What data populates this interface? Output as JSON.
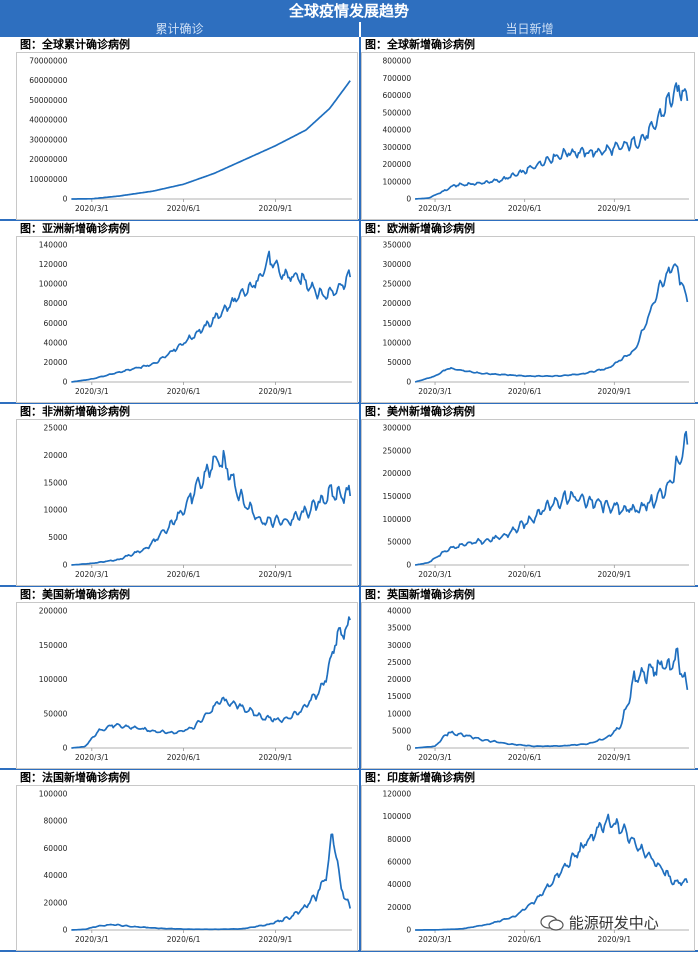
{
  "header": {
    "title": "全球疫情发展趋势",
    "left_column": "累计确诊",
    "right_column": "当日新增"
  },
  "watermark": "能源研发中心",
  "chart_data": [
    {
      "id": "global_cum",
      "type": "line",
      "title": "图：全球累计确诊病例",
      "ylim": [
        0,
        70000000
      ],
      "yticks": [
        0,
        10000000,
        20000000,
        30000000,
        40000000,
        50000000,
        60000000,
        70000000
      ],
      "xticks": [
        "2020/3/1",
        "2020/6/1",
        "2020/9/1"
      ],
      "xtick_pos": [
        0.22,
        0.49,
        0.76
      ],
      "x_range": [
        0.16,
        0.98
      ],
      "series": [
        {
          "name": "累计确诊",
          "x": [
            0.16,
            0.22,
            0.3,
            0.4,
            0.49,
            0.58,
            0.67,
            0.76,
            0.85,
            0.92,
            0.98
          ],
          "values": [
            0,
            100000,
            1500000,
            4000000,
            7500000,
            13000000,
            20000000,
            27000000,
            35000000,
            46000000,
            60000000
          ]
        }
      ],
      "noise": 0
    },
    {
      "id": "global_new",
      "type": "line",
      "title": "图：全球新增确诊病例",
      "ylim": [
        0,
        800000
      ],
      "yticks": [
        0,
        100000,
        200000,
        300000,
        400000,
        500000,
        600000,
        700000,
        800000
      ],
      "xticks": [
        "2020/3/1",
        "2020/6/1",
        "2020/9/1"
      ],
      "xtick_pos": [
        0.22,
        0.49,
        0.76
      ],
      "x_range": [
        0.16,
        0.98
      ],
      "series": [
        {
          "name": "新增",
          "x": [
            0.16,
            0.2,
            0.24,
            0.28,
            0.35,
            0.42,
            0.49,
            0.56,
            0.62,
            0.7,
            0.78,
            0.84,
            0.88,
            0.92,
            0.96,
            0.98
          ],
          "values": [
            0,
            5000,
            40000,
            80000,
            90000,
            110000,
            160000,
            230000,
            270000,
            270000,
            300000,
            340000,
            420000,
            560000,
            640000,
            600000
          ]
        }
      ],
      "noise": 0.12
    },
    {
      "id": "asia_new",
      "type": "line",
      "title": "图：亚洲新增确诊病例",
      "ylim": [
        0,
        140000
      ],
      "yticks": [
        0,
        20000,
        40000,
        60000,
        80000,
        100000,
        120000,
        140000
      ],
      "xticks": [
        "2020/3/1",
        "2020/6/1",
        "2020/9/1"
      ],
      "xtick_pos": [
        0.22,
        0.49,
        0.76
      ],
      "x_range": [
        0.16,
        0.98
      ],
      "series": [
        {
          "name": "新增",
          "x": [
            0.16,
            0.22,
            0.3,
            0.4,
            0.49,
            0.56,
            0.63,
            0.7,
            0.74,
            0.78,
            0.84,
            0.9,
            0.94,
            0.98
          ],
          "values": [
            0,
            3000,
            10000,
            18000,
            40000,
            58000,
            80000,
            100000,
            125000,
            110000,
            105000,
            88000,
            95000,
            108000
          ]
        }
      ],
      "noise": 0.08
    },
    {
      "id": "europe_new",
      "type": "line",
      "title": "图：欧洲新增确诊病例",
      "ylim": [
        0,
        350000
      ],
      "yticks": [
        0,
        50000,
        100000,
        150000,
        200000,
        250000,
        300000,
        350000
      ],
      "xticks": [
        "2020/3/1",
        "2020/6/1",
        "2020/9/1"
      ],
      "xtick_pos": [
        0.22,
        0.49,
        0.76
      ],
      "x_range": [
        0.16,
        0.98
      ],
      "series": [
        {
          "name": "新增",
          "x": [
            0.16,
            0.22,
            0.26,
            0.3,
            0.36,
            0.44,
            0.5,
            0.58,
            0.66,
            0.74,
            0.82,
            0.86,
            0.9,
            0.94,
            0.96,
            0.98
          ],
          "values": [
            0,
            15000,
            35000,
            30000,
            22000,
            18000,
            15000,
            15000,
            20000,
            35000,
            80000,
            160000,
            250000,
            300000,
            260000,
            210000
          ]
        }
      ],
      "noise": 0.07
    },
    {
      "id": "africa_new",
      "type": "line",
      "title": "图：非洲新增确诊病例",
      "ylim": [
        0,
        25000
      ],
      "yticks": [
        0,
        5000,
        10000,
        15000,
        20000,
        25000
      ],
      "xticks": [
        "2020/3/1",
        "2020/6/1",
        "2020/9/1"
      ],
      "xtick_pos": [
        0.22,
        0.49,
        0.76
      ],
      "x_range": [
        0.16,
        0.98
      ],
      "series": [
        {
          "name": "新增",
          "x": [
            0.16,
            0.22,
            0.3,
            0.38,
            0.45,
            0.52,
            0.58,
            0.62,
            0.66,
            0.72,
            0.8,
            0.86,
            0.92,
            0.98
          ],
          "values": [
            0,
            300,
            1000,
            3000,
            7000,
            13000,
            19000,
            18000,
            12000,
            8000,
            8000,
            10000,
            13000,
            13000
          ]
        }
      ],
      "noise": 0.14
    },
    {
      "id": "americas_new",
      "type": "line",
      "title": "图：美州新增确诊病例",
      "ylim": [
        0,
        300000
      ],
      "yticks": [
        0,
        50000,
        100000,
        150000,
        200000,
        250000,
        300000
      ],
      "xticks": [
        "2020/3/1",
        "2020/6/1",
        "2020/9/1"
      ],
      "xtick_pos": [
        0.22,
        0.49,
        0.76
      ],
      "x_range": [
        0.16,
        0.98
      ],
      "series": [
        {
          "name": "新增",
          "x": [
            0.16,
            0.2,
            0.26,
            0.34,
            0.42,
            0.49,
            0.56,
            0.62,
            0.68,
            0.76,
            0.82,
            0.88,
            0.92,
            0.96,
            0.98
          ],
          "values": [
            0,
            5000,
            35000,
            50000,
            60000,
            90000,
            130000,
            150000,
            140000,
            125000,
            120000,
            140000,
            170000,
            230000,
            270000
          ]
        }
      ],
      "noise": 0.13
    },
    {
      "id": "usa_new",
      "type": "line",
      "title": "图：美国新增确诊病例",
      "ylim": [
        0,
        200000
      ],
      "yticks": [
        0,
        50000,
        100000,
        150000,
        200000
      ],
      "xticks": [
        "2020/3/1",
        "2020/6/1",
        "2020/9/1"
      ],
      "xtick_pos": [
        0.22,
        0.49,
        0.76
      ],
      "x_range": [
        0.16,
        0.98
      ],
      "series": [
        {
          "name": "新增",
          "x": [
            0.16,
            0.2,
            0.24,
            0.28,
            0.34,
            0.4,
            0.46,
            0.52,
            0.56,
            0.6,
            0.66,
            0.72,
            0.78,
            0.84,
            0.9,
            0.94,
            0.98
          ],
          "values": [
            0,
            2000,
            25000,
            33000,
            30000,
            25000,
            22000,
            30000,
            50000,
            70000,
            60000,
            45000,
            40000,
            55000,
            90000,
            160000,
            180000
          ]
        }
      ],
      "noise": 0.1
    },
    {
      "id": "uk_new",
      "type": "line",
      "title": "图：英国新增确诊病例",
      "ylim": [
        0,
        40000
      ],
      "yticks": [
        0,
        5000,
        10000,
        15000,
        20000,
        25000,
        30000,
        35000,
        40000
      ],
      "xticks": [
        "2020/3/1",
        "2020/6/1",
        "2020/9/1"
      ],
      "xtick_pos": [
        0.22,
        0.49,
        0.76
      ],
      "x_range": [
        0.16,
        0.98
      ],
      "series": [
        {
          "name": "新增",
          "x": [
            0.16,
            0.22,
            0.26,
            0.3,
            0.36,
            0.44,
            0.52,
            0.6,
            0.68,
            0.74,
            0.78,
            0.82,
            0.86,
            0.9,
            0.93,
            0.95,
            0.98
          ],
          "values": [
            0,
            500,
            4500,
            4000,
            2500,
            1200,
            500,
            600,
            1200,
            3000,
            6500,
            20000,
            22000,
            24000,
            24000,
            26000,
            17000
          ]
        }
      ],
      "noise": 0.14
    },
    {
      "id": "france_new",
      "type": "line",
      "title": "图：法国新增确诊病例",
      "ylim": [
        0,
        100000
      ],
      "yticks": [
        0,
        20000,
        40000,
        60000,
        80000,
        100000
      ],
      "xticks": [
        "2020/3/1",
        "2020/6/1",
        "2020/9/1"
      ],
      "xtick_pos": [
        0.22,
        0.49,
        0.76
      ],
      "x_range": [
        0.16,
        0.98
      ],
      "series": [
        {
          "name": "新增",
          "x": [
            0.16,
            0.2,
            0.24,
            0.28,
            0.34,
            0.42,
            0.5,
            0.58,
            0.66,
            0.74,
            0.8,
            0.84,
            0.88,
            0.91,
            0.93,
            0.95,
            0.98
          ],
          "values": [
            0,
            500,
            3000,
            4000,
            2500,
            1200,
            600,
            500,
            800,
            4000,
            9000,
            15000,
            25000,
            40000,
            75000,
            35000,
            15000
          ]
        }
      ],
      "noise": 0.16
    },
    {
      "id": "india_new",
      "type": "line",
      "title": "图：印度新增确诊病例",
      "ylim": [
        0,
        120000
      ],
      "yticks": [
        0,
        20000,
        40000,
        60000,
        80000,
        100000,
        120000
      ],
      "xticks": [
        "2020/3/1",
        "2020/6/1",
        "2020/9/1"
      ],
      "xtick_pos": [
        0.22,
        0.49,
        0.76
      ],
      "x_range": [
        0.16,
        0.98
      ],
      "series": [
        {
          "name": "新增",
          "x": [
            0.16,
            0.22,
            0.3,
            0.38,
            0.46,
            0.52,
            0.58,
            0.64,
            0.7,
            0.74,
            0.78,
            0.84,
            0.9,
            0.94,
            0.98
          ],
          "values": [
            0,
            100,
            1000,
            5000,
            12000,
            25000,
            45000,
            65000,
            85000,
            95000,
            90000,
            72000,
            55000,
            42000,
            43000
          ]
        }
      ],
      "noise": 0.08
    }
  ]
}
